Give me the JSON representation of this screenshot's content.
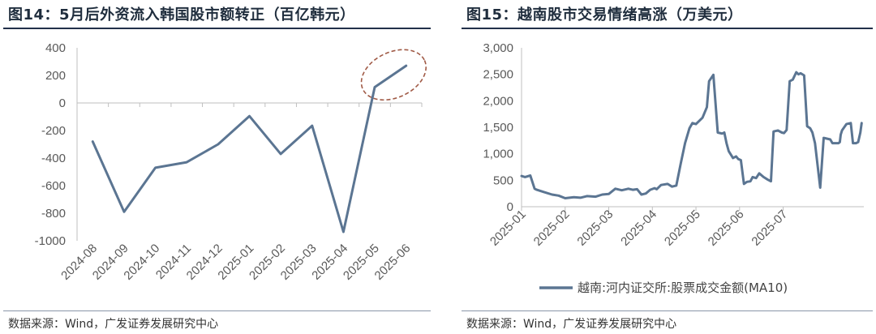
{
  "left": {
    "title": "图14：5月后外资流入韩国股市额转正（百亿韩元）",
    "source": "数据来源：Wind，广发证券发展研究中心",
    "accent_color": "#5b7592",
    "highlight_color": "#a05a46"
  },
  "right": {
    "title": "图15：越南股市交易情绪高涨（万美元）",
    "source": "数据来源：Wind，广发证券发展研究中心",
    "accent_color": "#5b7592"
  },
  "chart_data": [
    {
      "type": "line",
      "title": "图14：5月后外资流入韩国股市额转正（百亿韩元）",
      "categories": [
        "2024-08",
        "2024-09",
        "2024-10",
        "2024-11",
        "2024-12",
        "2025-01",
        "2025-02",
        "2025-03",
        "2025-04",
        "2025-05",
        "2025-06"
      ],
      "yticks": [
        400,
        200,
        0,
        -200,
        -400,
        -600,
        -800,
        -1000
      ],
      "ytick_labels": [
        "400",
        "200",
        "0",
        "-200",
        "-400",
        "-600",
        "-800",
        "-1000"
      ],
      "ylim": [
        -1000,
        400
      ],
      "series": [
        {
          "values": [
            -280,
            -790,
            -470,
            -430,
            -300,
            -95,
            -370,
            -165,
            -935,
            115,
            270
          ]
        }
      ],
      "annotation": "dashed-ellipse highlighting 2025-05 to 2025-06",
      "grid": false
    },
    {
      "type": "line",
      "title": "图15：越南股市交易情绪高涨（万美元）",
      "categories": [
        "2025-01",
        "2025-02",
        "2025-03",
        "2025-04",
        "2025-05",
        "2025-06",
        "2025-07"
      ],
      "yticks": [
        3000,
        2500,
        2000,
        1500,
        1000,
        500,
        0
      ],
      "ytick_labels": [
        "3,000",
        "2,500",
        "2,000",
        "1,500",
        "1,000",
        "500",
        "0"
      ],
      "ylim": [
        0,
        3000
      ],
      "legend": "bottom-center",
      "series": [
        {
          "name": "越南:河内证交所:股票成交金额(MA10)",
          "x": [
            0,
            0.08,
            0.2,
            0.3,
            0.35,
            0.5,
            0.7,
            0.85,
            1.0,
            1.2,
            1.35,
            1.5,
            1.7,
            1.85,
            2.0,
            2.15,
            2.3,
            2.45,
            2.55,
            2.65,
            2.75,
            2.85,
            2.95,
            3.05,
            3.1,
            3.2,
            3.35,
            3.45,
            3.55,
            3.65,
            3.75,
            3.85,
            3.92,
            4.0,
            4.15,
            4.25,
            4.3,
            4.4,
            4.5,
            4.6,
            4.65,
            4.7,
            4.75,
            4.85,
            4.92,
            4.97,
            5.03,
            5.1,
            5.17,
            5.25,
            5.3,
            5.38,
            5.45,
            5.55,
            5.65,
            5.72,
            5.78,
            5.88,
            5.97,
            6.02,
            6.08,
            6.15,
            6.22,
            6.3,
            6.35,
            6.4,
            6.48,
            6.55,
            6.62,
            6.67,
            6.73,
            6.85,
            6.93,
            7.08,
            7.13,
            7.22,
            7.27,
            7.3,
            7.32,
            7.35,
            7.45,
            7.55,
            7.6,
            7.67,
            7.72,
            7.77,
            7.8
          ],
          "values": [
            580,
            560,
            590,
            340,
            320,
            280,
            230,
            210,
            160,
            180,
            170,
            200,
            190,
            230,
            240,
            340,
            310,
            340,
            320,
            330,
            230,
            250,
            320,
            350,
            330,
            410,
            430,
            380,
            400,
            810,
            1200,
            1480,
            1580,
            1560,
            1680,
            1880,
            2370,
            2490,
            1400,
            1380,
            1400,
            1200,
            1050,
            920,
            950,
            900,
            880,
            430,
            470,
            480,
            560,
            540,
            630,
            560,
            510,
            480,
            1420,
            1440,
            1400,
            1390,
            1450,
            2370,
            2400,
            2540,
            2500,
            2520,
            2480,
            1520,
            1480,
            1400,
            1200,
            360,
            1300,
            1270,
            1200,
            1200,
            1200,
            1220,
            1360,
            1440,
            1560,
            1580,
            1200,
            1200,
            1220,
            1400,
            1580
          ]
        }
      ],
      "grid": false
    }
  ]
}
